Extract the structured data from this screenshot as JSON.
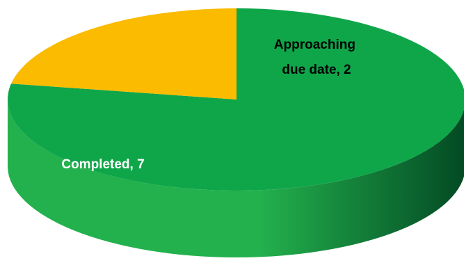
{
  "chart_data": {
    "type": "pie",
    "title": "",
    "three_d": true,
    "slices": [
      {
        "label": "Completed",
        "value": 7,
        "color": "#0fa64a",
        "data_label": "Completed, 7",
        "label_color": "#ffffff"
      },
      {
        "label": "Approaching due date",
        "value": 2,
        "color": "#fbbb00",
        "data_label_lines": [
          "Approaching",
          "due date, 2"
        ],
        "label_color": "#000000"
      }
    ],
    "side_colors": {
      "light": "#23b14d",
      "dark": "#034a24"
    }
  }
}
